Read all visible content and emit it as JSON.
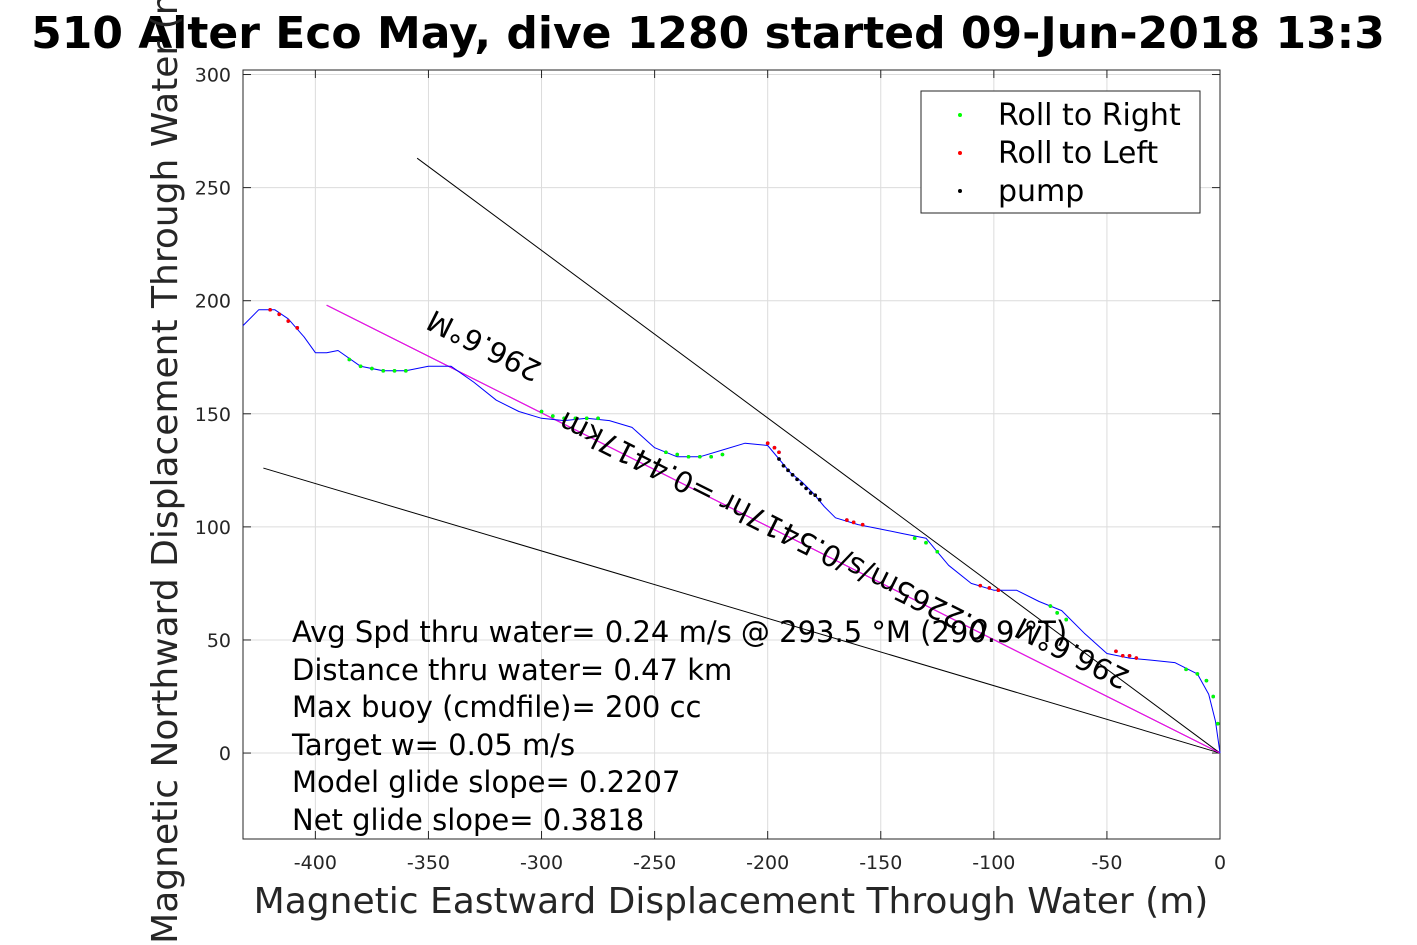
{
  "chart_data": {
    "type": "line",
    "title": "510 Alter Eco May, dive 1280 started 09-Jun-2018 13:3",
    "xlabel": "Magnetic Eastward Displacement Through Water (m)",
    "ylabel": "Magnetic Northward Displacement Through Water (m)",
    "xlim": [
      -432,
      0
    ],
    "ylim": [
      -38,
      302
    ],
    "xticks": [
      -400,
      -350,
      -300,
      -250,
      -200,
      -150,
      -100,
      -50,
      0
    ],
    "yticks": [
      0,
      50,
      100,
      150,
      200,
      250,
      300
    ],
    "grid": true,
    "legend_position": "top-right",
    "legend": [
      {
        "label": "Roll to Right",
        "color": "#00ff00"
      },
      {
        "label": "Roll to Left",
        "color": "#ff0000"
      },
      {
        "label": "pump",
        "color": "#000000"
      }
    ],
    "track_color": "#0000ff",
    "track": {
      "x": [
        -432,
        -425,
        -418,
        -412,
        -405,
        -400,
        -395,
        -390,
        -380,
        -370,
        -360,
        -350,
        -340,
        -330,
        -320,
        -310,
        -300,
        -290,
        -280,
        -270,
        -260,
        -250,
        -240,
        -230,
        -220,
        -210,
        -200,
        -195,
        -190,
        -185,
        -180,
        -175,
        -170,
        -160,
        -150,
        -140,
        -130,
        -125,
        -120,
        -110,
        -100,
        -90,
        -80,
        -70,
        -60,
        -50,
        -40,
        -30,
        -20,
        -10,
        -5,
        -2,
        0
      ],
      "y": [
        189,
        196,
        196,
        192,
        184,
        177,
        177,
        178,
        171,
        169,
        169,
        171,
        171,
        164,
        156,
        151,
        148,
        147,
        148,
        147,
        144,
        135,
        131,
        131,
        134,
        137,
        136,
        130,
        124,
        120,
        115,
        109,
        104,
        101,
        99,
        97,
        95,
        89,
        83,
        75,
        72,
        72,
        67,
        63,
        53,
        44,
        42,
        41,
        40,
        35,
        26,
        14,
        0
      ]
    },
    "roll_right_points": [
      [
        -385,
        174
      ],
      [
        -380,
        171
      ],
      [
        -375,
        170
      ],
      [
        -370,
        169
      ],
      [
        -365,
        169
      ],
      [
        -360,
        169
      ],
      [
        -300,
        151
      ],
      [
        -295,
        149
      ],
      [
        -290,
        148
      ],
      [
        -285,
        148
      ],
      [
        -280,
        148
      ],
      [
        -275,
        148
      ],
      [
        -245,
        133
      ],
      [
        -240,
        132
      ],
      [
        -235,
        131
      ],
      [
        -230,
        131
      ],
      [
        -225,
        131
      ],
      [
        -220,
        132
      ],
      [
        -135,
        95
      ],
      [
        -130,
        93
      ],
      [
        -125,
        89
      ],
      [
        -75,
        65
      ],
      [
        -72,
        62
      ],
      [
        -68,
        59
      ],
      [
        -15,
        37
      ],
      [
        -10,
        35
      ],
      [
        -6,
        32
      ],
      [
        -3,
        25
      ],
      [
        -1,
        13
      ]
    ],
    "roll_left_points": [
      [
        -420,
        196
      ],
      [
        -416,
        194
      ],
      [
        -412,
        191
      ],
      [
        -408,
        188
      ],
      [
        -200,
        137
      ],
      [
        -197,
        135
      ],
      [
        -195,
        133
      ],
      [
        -165,
        103
      ],
      [
        -162,
        102
      ],
      [
        -158,
        101
      ],
      [
        -106,
        74
      ],
      [
        -102,
        73
      ],
      [
        -98,
        72
      ],
      [
        -46,
        45
      ],
      [
        -43,
        43
      ],
      [
        -40,
        43
      ],
      [
        -37,
        42
      ]
    ],
    "pump_points": [
      [
        -195,
        130
      ],
      [
        -193,
        127
      ],
      [
        -191,
        125
      ],
      [
        -189,
        123
      ],
      [
        -187,
        121
      ],
      [
        -185,
        119
      ],
      [
        -183,
        117
      ],
      [
        -181,
        115
      ],
      [
        -179,
        114
      ],
      [
        -177,
        112
      ]
    ],
    "lines": [
      {
        "x": [
          -355,
          0
        ],
        "y": [
          263,
          0
        ],
        "color": "#000000"
      },
      {
        "x": [
          -395,
          0
        ],
        "y": [
          198,
          0
        ],
        "color": "#000000"
      },
      {
        "x": [
          -423,
          0
        ],
        "y": [
          126,
          0
        ],
        "color": "#000000"
      },
      {
        "x": [
          -395,
          0
        ],
        "y": [
          198,
          0
        ],
        "color": "#ff00ff"
      }
    ],
    "rotated_labels": [
      {
        "text": "296.6°M",
        "x": -325,
        "y": 181,
        "angle_deg": 26.6
      },
      {
        "text": "0.2265m/s/0.5417hr =0.4417km",
        "x": -197,
        "y": 101,
        "angle_deg": 26.6
      },
      {
        "text": "296.6°M",
        "x": -65,
        "y": 45,
        "angle_deg": 26.6
      }
    ],
    "annotations": [
      "Avg Spd thru water=  0.24 m/s @ 293.5 °M (290.9 °T)",
      "Distance thru water=  0.47 km",
      "Max buoy (cmdfile)= 200 cc",
      "Target w= 0.05 m/s",
      "Model glide slope= 0.2207",
      "Net glide slope= 0.3818"
    ]
  }
}
